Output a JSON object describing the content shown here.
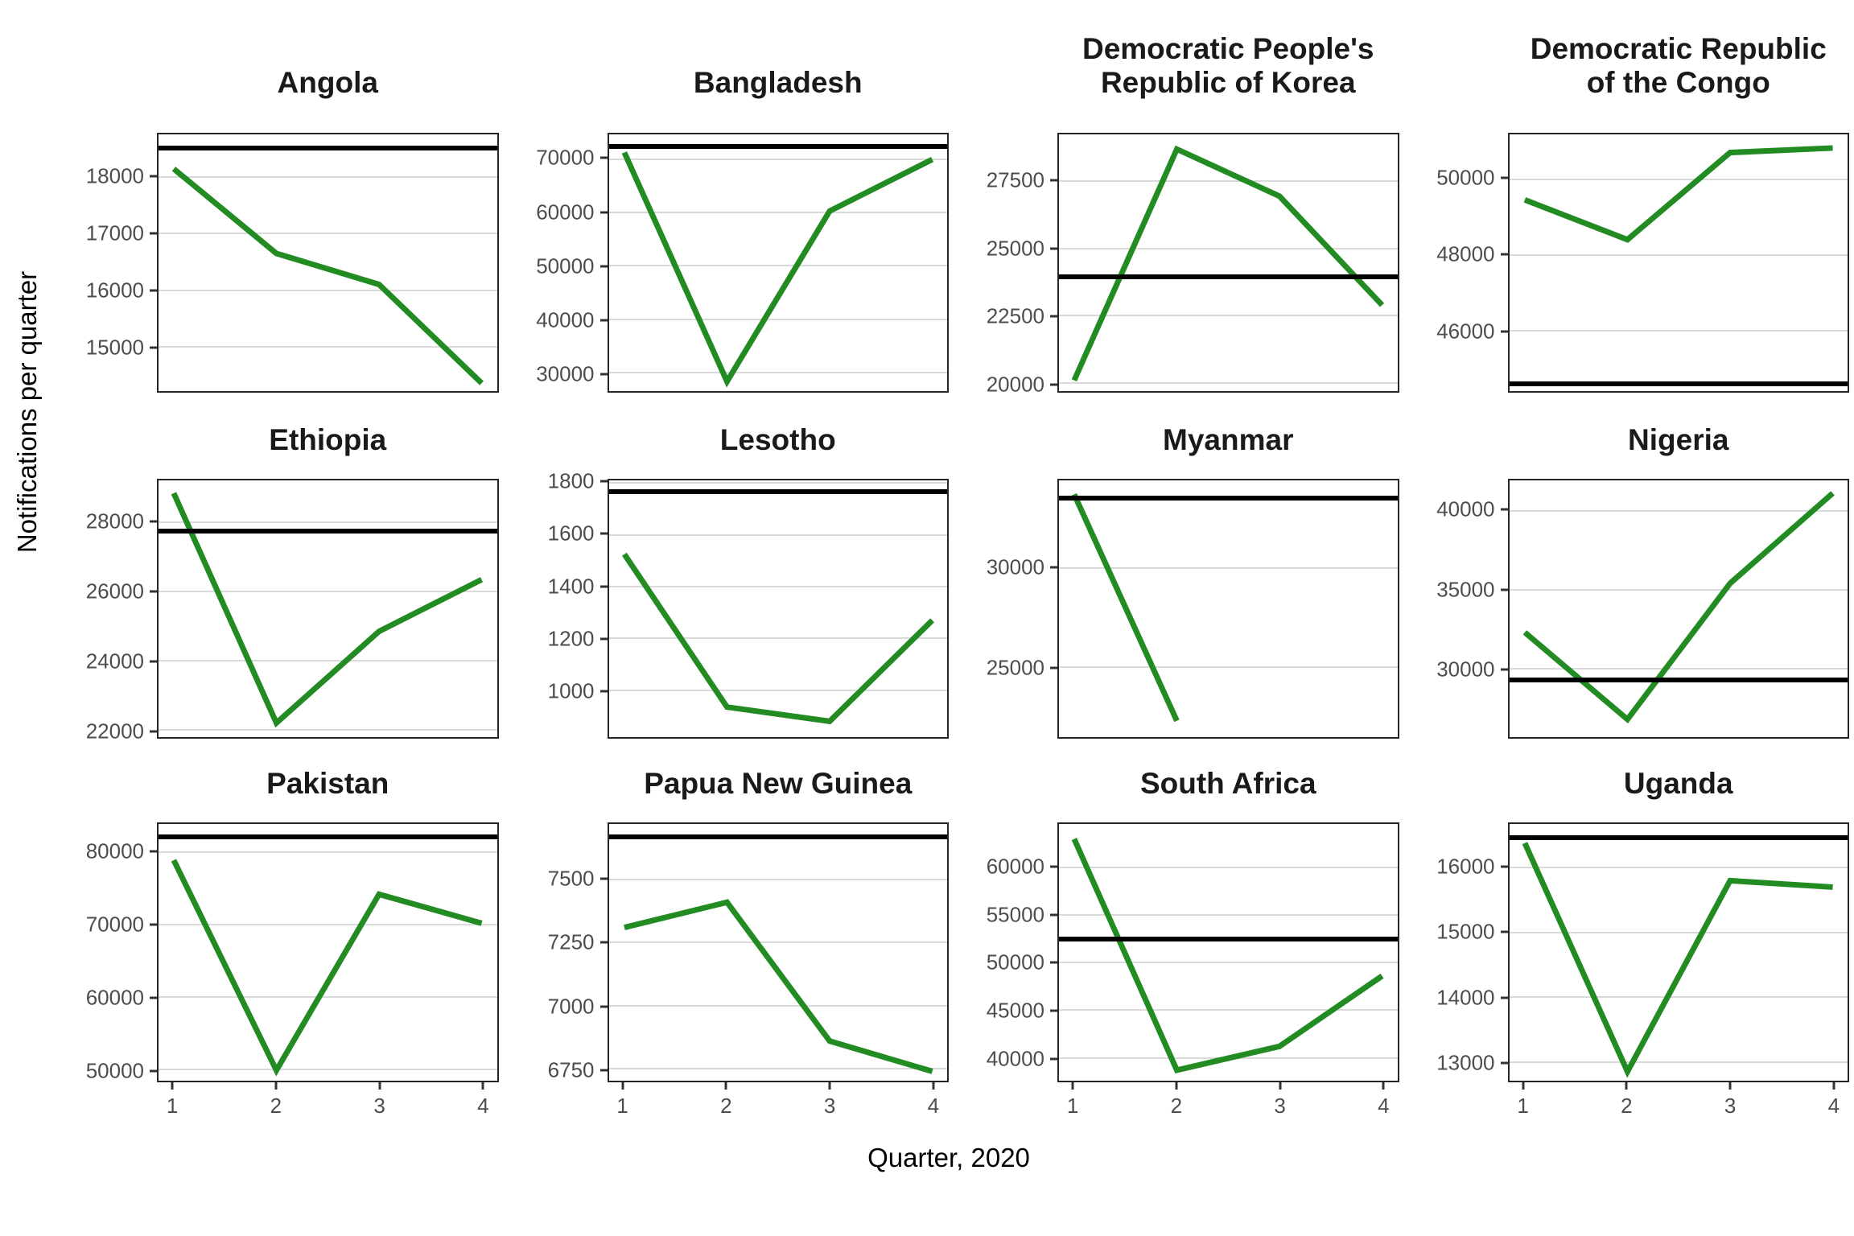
{
  "figure": {
    "x_axis_title": "Quarter, 2020",
    "y_axis_title": "Notifications per quarter"
  },
  "chart_data": {
    "type": "line",
    "layout": "faceted small multiples, 3 rows x 4 columns, free y scales",
    "x": [
      1,
      2,
      3,
      4
    ],
    "x_tick_labels": [
      "1",
      "2",
      "3",
      "4"
    ],
    "xlabel": "Quarter, 2020",
    "ylabel": "Notifications per quarter",
    "grid": "horizontal major gridlines only",
    "legend": "none",
    "series_color": "#228B22",
    "reference_line_color": "#000000",
    "series_description": "green line = quarterly TB notifications 2020; black horizontal line = pre-2020 reference level",
    "panels": [
      {
        "title": "Angola",
        "values": [
          18150,
          16650,
          16100,
          14350
        ],
        "reference": 18520,
        "yticks": [
          15000,
          16000,
          17000,
          18000
        ],
        "ylim": [
          14210,
          18760
        ]
      },
      {
        "title": "Bangladesh",
        "values": [
          71300,
          28300,
          60300,
          70000
        ],
        "reference": 72500,
        "yticks": [
          30000,
          40000,
          50000,
          60000,
          70000
        ],
        "ylim": [
          26500,
          74700
        ]
      },
      {
        "title": "Democratic People's\nRepublic of Korea",
        "values": [
          20100,
          28700,
          26950,
          22900
        ],
        "reference": 23950,
        "yticks": [
          20000,
          22500,
          25000,
          27500
        ],
        "ylim": [
          19700,
          29250
        ]
      },
      {
        "title": "Democratic Republic\nof the Congo",
        "values": [
          49450,
          48400,
          50700,
          50820
        ],
        "reference": 44600,
        "yticks": [
          46000,
          48000,
          50000
        ],
        "ylim": [
          44400,
          51180
        ]
      },
      {
        "title": "Ethiopia",
        "values": [
          28850,
          22200,
          24850,
          26350
        ],
        "reference": 27760,
        "yticks": [
          22000,
          24000,
          26000,
          28000
        ],
        "ylim": [
          21790,
          29220
        ]
      },
      {
        "title": "Lesotho",
        "values": [
          1525,
          935,
          880,
          1270
        ],
        "reference": 1766,
        "yticks": [
          1000,
          1200,
          1400,
          1600,
          1800
        ],
        "ylim": [
          819,
          1810
        ]
      },
      {
        "title": "Myanmar",
        "values": [
          33700,
          22300,
          null,
          null
        ],
        "reference": 33520,
        "yticks": [
          25000,
          30000
        ],
        "ylim": [
          21480,
          34400
        ]
      },
      {
        "title": "Nigeria",
        "values": [
          32300,
          26800,
          35400,
          41100
        ],
        "reference": 29300,
        "yticks": [
          30000,
          35000,
          40000
        ],
        "ylim": [
          25680,
          41910
        ]
      },
      {
        "title": "Pakistan",
        "values": [
          78900,
          49900,
          74200,
          70200
        ],
        "reference": 82100,
        "yticks": [
          50000,
          60000,
          70000,
          80000
        ],
        "ylim": [
          48470,
          83900
        ]
      },
      {
        "title": "Papua New Guinea",
        "values": [
          7310,
          7410,
          6860,
          6740
        ],
        "reference": 7670,
        "yticks": [
          6750,
          7000,
          7250,
          7500
        ],
        "ylim": [
          6703,
          7720
        ]
      },
      {
        "title": "South Africa",
        "values": [
          63000,
          38700,
          41200,
          48600
        ],
        "reference": 52510,
        "yticks": [
          40000,
          45000,
          50000,
          55000,
          60000
        ],
        "ylim": [
          37590,
          64570
        ]
      },
      {
        "title": "Uganda",
        "values": [
          16380,
          12850,
          15800,
          15700
        ],
        "reference": 16460,
        "yticks": [
          13000,
          14000,
          15000,
          16000
        ],
        "ylim": [
          12710,
          16675
        ]
      }
    ]
  }
}
